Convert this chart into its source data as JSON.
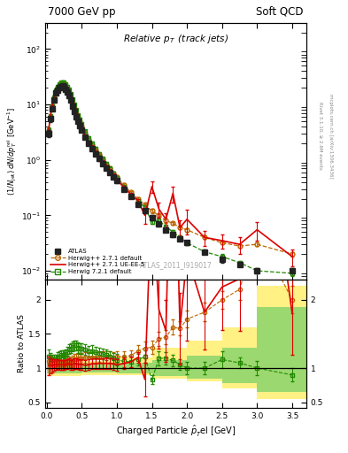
{
  "title_left": "7000 GeV pp",
  "title_right": "Soft QCD",
  "plot_title": "Relative p$_T$ (track jets)",
  "xlabel": "Charged Particle $\\hat{p}_T^{\\,}$el [GeV]",
  "ylabel_main": "(1/N$_{jet}$)dN/dp$_T^{rel}$ [GeV$^{-1}$]",
  "ylabel_ratio": "Ratio to ATLAS",
  "watermark": "ATLAS_2011_I919017",
  "atlas_x": [
    0.025,
    0.05,
    0.075,
    0.1,
    0.125,
    0.15,
    0.175,
    0.2,
    0.225,
    0.25,
    0.275,
    0.3,
    0.325,
    0.35,
    0.375,
    0.4,
    0.425,
    0.45,
    0.475,
    0.5,
    0.55,
    0.6,
    0.65,
    0.7,
    0.75,
    0.8,
    0.85,
    0.9,
    0.95,
    1.0,
    1.1,
    1.2,
    1.3,
    1.4,
    1.5,
    1.6,
    1.7,
    1.8,
    1.9,
    2.0,
    2.25,
    2.5,
    2.75,
    3.0,
    3.5
  ],
  "atlas_y": [
    3.0,
    5.5,
    8.5,
    12.0,
    16.0,
    18.0,
    20.0,
    21.0,
    21.5,
    21.0,
    19.0,
    17.0,
    14.5,
    12.0,
    9.5,
    7.5,
    6.0,
    5.0,
    4.2,
    3.5,
    2.6,
    2.0,
    1.6,
    1.3,
    1.05,
    0.87,
    0.72,
    0.6,
    0.5,
    0.42,
    0.3,
    0.22,
    0.16,
    0.12,
    0.092,
    0.07,
    0.055,
    0.045,
    0.038,
    0.032,
    0.022,
    0.016,
    0.013,
    0.01,
    0.01
  ],
  "atlas_yerr": [
    0.4,
    0.6,
    0.8,
    1.0,
    1.2,
    1.3,
    1.4,
    1.5,
    1.5,
    1.5,
    1.3,
    1.2,
    1.0,
    0.85,
    0.7,
    0.55,
    0.45,
    0.38,
    0.32,
    0.27,
    0.2,
    0.16,
    0.13,
    0.1,
    0.085,
    0.07,
    0.058,
    0.048,
    0.04,
    0.034,
    0.025,
    0.018,
    0.013,
    0.01,
    0.008,
    0.006,
    0.005,
    0.004,
    0.003,
    0.003,
    0.002,
    0.002,
    0.001,
    0.001,
    0.001
  ],
  "hw271_x": [
    0.025,
    0.05,
    0.075,
    0.1,
    0.125,
    0.15,
    0.175,
    0.2,
    0.225,
    0.25,
    0.275,
    0.3,
    0.325,
    0.35,
    0.375,
    0.4,
    0.425,
    0.45,
    0.475,
    0.5,
    0.55,
    0.6,
    0.65,
    0.7,
    0.75,
    0.8,
    0.85,
    0.9,
    0.95,
    1.0,
    1.1,
    1.2,
    1.3,
    1.4,
    1.5,
    1.6,
    1.7,
    1.8,
    1.9,
    2.0,
    2.25,
    2.5,
    2.75,
    3.0,
    3.5
  ],
  "hw271_y": [
    3.3,
    6.0,
    9.2,
    13.0,
    17.5,
    20.0,
    22.0,
    23.0,
    23.5,
    23.0,
    21.0,
    19.0,
    16.0,
    13.0,
    10.5,
    8.5,
    6.8,
    5.7,
    4.8,
    4.0,
    3.0,
    2.3,
    1.85,
    1.5,
    1.22,
    1.01,
    0.84,
    0.7,
    0.58,
    0.49,
    0.35,
    0.26,
    0.2,
    0.155,
    0.12,
    0.1,
    0.08,
    0.072,
    0.06,
    0.055,
    0.04,
    0.032,
    0.028,
    0.03,
    0.02
  ],
  "hw271_yerr": [
    0.3,
    0.5,
    0.7,
    0.9,
    1.1,
    1.3,
    1.4,
    1.5,
    1.5,
    1.5,
    1.3,
    1.2,
    1.0,
    0.85,
    0.7,
    0.55,
    0.45,
    0.38,
    0.32,
    0.27,
    0.2,
    0.16,
    0.13,
    0.1,
    0.08,
    0.07,
    0.06,
    0.05,
    0.04,
    0.035,
    0.025,
    0.018,
    0.014,
    0.011,
    0.009,
    0.007,
    0.006,
    0.005,
    0.004,
    0.004,
    0.003,
    0.002,
    0.002,
    0.002,
    0.002
  ],
  "hw271ue_x": [
    0.025,
    0.05,
    0.075,
    0.1,
    0.125,
    0.15,
    0.175,
    0.2,
    0.225,
    0.25,
    0.275,
    0.3,
    0.325,
    0.35,
    0.375,
    0.4,
    0.425,
    0.45,
    0.475,
    0.5,
    0.55,
    0.6,
    0.65,
    0.7,
    0.75,
    0.8,
    0.85,
    0.9,
    0.95,
    1.0,
    1.1,
    1.2,
    1.3,
    1.4,
    1.5,
    1.6,
    1.7,
    1.8,
    1.9,
    2.0,
    2.25,
    2.5,
    2.75,
    3.0,
    3.5
  ],
  "hw271ue_y": [
    3.1,
    5.7,
    8.8,
    12.5,
    16.8,
    19.0,
    21.0,
    22.0,
    22.5,
    22.0,
    20.0,
    18.0,
    15.5,
    12.5,
    10.0,
    8.0,
    6.4,
    5.3,
    4.4,
    3.7,
    2.7,
    2.1,
    1.7,
    1.38,
    1.12,
    0.93,
    0.77,
    0.64,
    0.53,
    0.44,
    0.32,
    0.24,
    0.185,
    0.1,
    0.33,
    0.13,
    0.085,
    0.25,
    0.06,
    0.085,
    0.04,
    0.035,
    0.03,
    0.055,
    0.018
  ],
  "hw271ue_yerr": [
    0.4,
    0.6,
    0.8,
    1.0,
    1.2,
    1.3,
    1.4,
    1.5,
    1.5,
    1.5,
    1.3,
    1.2,
    1.0,
    0.85,
    0.7,
    0.55,
    0.45,
    0.38,
    0.32,
    0.27,
    0.2,
    0.16,
    0.13,
    0.1,
    0.085,
    0.07,
    0.058,
    0.048,
    0.04,
    0.034,
    0.025,
    0.018,
    0.013,
    0.03,
    0.08,
    0.04,
    0.025,
    0.08,
    0.02,
    0.04,
    0.012,
    0.01,
    0.01,
    0.02,
    0.006
  ],
  "hw721_x": [
    0.025,
    0.05,
    0.075,
    0.1,
    0.125,
    0.15,
    0.175,
    0.2,
    0.225,
    0.25,
    0.275,
    0.3,
    0.325,
    0.35,
    0.375,
    0.4,
    0.425,
    0.45,
    0.475,
    0.5,
    0.55,
    0.6,
    0.65,
    0.7,
    0.75,
    0.8,
    0.85,
    0.9,
    0.95,
    1.0,
    1.1,
    1.2,
    1.3,
    1.4,
    1.5,
    1.6,
    1.7,
    1.8,
    1.9,
    2.0,
    2.25,
    2.5,
    2.75,
    3.0,
    3.5
  ],
  "hw721_y": [
    3.5,
    6.2,
    9.5,
    13.5,
    18.0,
    21.0,
    23.5,
    25.0,
    25.5,
    25.0,
    23.0,
    21.0,
    18.5,
    15.5,
    12.5,
    10.0,
    8.0,
    6.5,
    5.4,
    4.5,
    3.3,
    2.5,
    2.0,
    1.6,
    1.28,
    1.05,
    0.86,
    0.7,
    0.57,
    0.47,
    0.33,
    0.24,
    0.18,
    0.14,
    0.076,
    0.08,
    0.063,
    0.05,
    0.04,
    0.032,
    0.022,
    0.018,
    0.014,
    0.01,
    0.009
  ],
  "hw721_yerr": [
    0.3,
    0.5,
    0.7,
    0.9,
    1.1,
    1.3,
    1.4,
    1.5,
    1.5,
    1.5,
    1.3,
    1.2,
    1.0,
    0.85,
    0.7,
    0.55,
    0.45,
    0.38,
    0.32,
    0.27,
    0.2,
    0.16,
    0.13,
    0.1,
    0.08,
    0.07,
    0.06,
    0.05,
    0.04,
    0.035,
    0.025,
    0.018,
    0.014,
    0.011,
    0.006,
    0.007,
    0.005,
    0.004,
    0.003,
    0.003,
    0.002,
    0.002,
    0.001,
    0.001,
    0.001
  ],
  "atlas_color": "#222222",
  "hw271_color": "#bb6600",
  "hw271ue_color": "#dd0000",
  "hw721_color": "#228800",
  "ylim_main": [
    0.007,
    300
  ],
  "xlim": [
    -0.02,
    3.7
  ],
  "ylim_ratio": [
    0.42,
    2.3
  ],
  "band_edges": [
    0.0,
    0.5,
    1.0,
    1.5,
    2.0,
    2.5,
    3.0,
    3.7
  ],
  "yellow_low": [
    0.88,
    0.9,
    0.9,
    0.85,
    0.8,
    0.7,
    0.55
  ],
  "yellow_high": [
    1.12,
    1.1,
    1.15,
    1.3,
    1.4,
    1.6,
    2.2
  ],
  "green_low": [
    0.92,
    0.93,
    0.92,
    0.88,
    0.85,
    0.78,
    0.65
  ],
  "green_high": [
    1.08,
    1.07,
    1.08,
    1.12,
    1.18,
    1.3,
    1.9
  ]
}
